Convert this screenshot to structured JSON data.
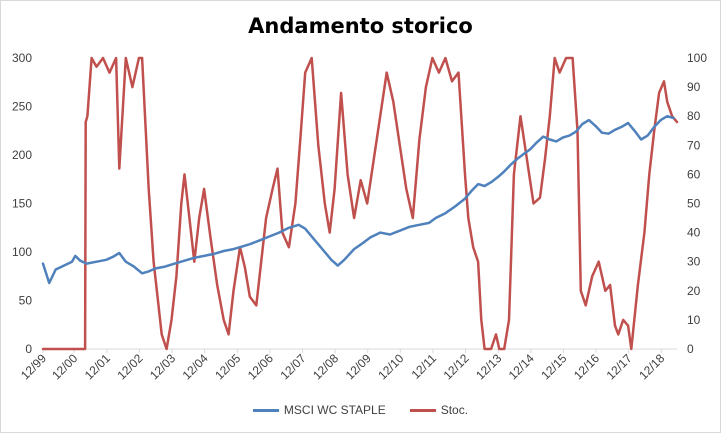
{
  "chart_data": {
    "type": "line",
    "title": "Andamento storico",
    "x_tick_labels": [
      "12/99",
      "12/00",
      "12/01",
      "12/02",
      "12/03",
      "12/04",
      "12/05",
      "12/06",
      "12/07",
      "12/08",
      "12/09",
      "12/10",
      "12/11",
      "12/12",
      "12/13",
      "12/14",
      "12/15",
      "12/16",
      "12/17",
      "12/18"
    ],
    "x_range": [
      1999.96,
      2019.4
    ],
    "y_left": {
      "range": [
        0,
        300
      ],
      "ticks": [
        "0",
        "50",
        "100",
        "150",
        "200",
        "250",
        "300"
      ]
    },
    "y_right": {
      "range": [
        0,
        100
      ],
      "ticks": [
        "0",
        "10",
        "20",
        "30",
        "40",
        "50",
        "60",
        "70",
        "80",
        "90",
        "100"
      ]
    },
    "grid": false,
    "legend_position": "bottom",
    "series": [
      {
        "name": "MSCI WC STAPLE",
        "axis": "left",
        "color": "#4f81bd",
        "points": [
          [
            1999.96,
            88
          ],
          [
            2000.15,
            68
          ],
          [
            2000.35,
            82
          ],
          [
            2000.6,
            86
          ],
          [
            2000.85,
            90
          ],
          [
            2000.95,
            96
          ],
          [
            2001.1,
            91
          ],
          [
            2001.3,
            88
          ],
          [
            2001.6,
            90
          ],
          [
            2001.9,
            92
          ],
          [
            2002.1,
            95
          ],
          [
            2002.3,
            99
          ],
          [
            2002.5,
            90
          ],
          [
            2002.75,
            85
          ],
          [
            2003.0,
            78
          ],
          [
            2003.2,
            80
          ],
          [
            2003.4,
            83
          ],
          [
            2003.7,
            85
          ],
          [
            2004.0,
            88
          ],
          [
            2004.3,
            91
          ],
          [
            2004.6,
            94
          ],
          [
            2004.9,
            96
          ],
          [
            2005.2,
            98
          ],
          [
            2005.5,
            101
          ],
          [
            2005.8,
            103
          ],
          [
            2006.0,
            105
          ],
          [
            2006.3,
            108
          ],
          [
            2006.6,
            112
          ],
          [
            2006.9,
            116
          ],
          [
            2007.2,
            120
          ],
          [
            2007.5,
            125
          ],
          [
            2007.8,
            128
          ],
          [
            2008.0,
            124
          ],
          [
            2008.3,
            112
          ],
          [
            2008.6,
            100
          ],
          [
            2008.8,
            92
          ],
          [
            2009.0,
            86
          ],
          [
            2009.2,
            92
          ],
          [
            2009.5,
            103
          ],
          [
            2009.8,
            110
          ],
          [
            2010.0,
            115
          ],
          [
            2010.3,
            120
          ],
          [
            2010.6,
            118
          ],
          [
            2010.9,
            122
          ],
          [
            2011.2,
            126
          ],
          [
            2011.5,
            128
          ],
          [
            2011.8,
            130
          ],
          [
            2012.0,
            135
          ],
          [
            2012.3,
            140
          ],
          [
            2012.6,
            147
          ],
          [
            2012.9,
            155
          ],
          [
            2013.1,
            163
          ],
          [
            2013.3,
            170
          ],
          [
            2013.5,
            168
          ],
          [
            2013.7,
            172
          ],
          [
            2013.9,
            177
          ],
          [
            2014.1,
            183
          ],
          [
            2014.3,
            190
          ],
          [
            2014.5,
            196
          ],
          [
            2014.7,
            201
          ],
          [
            2014.9,
            206
          ],
          [
            2015.1,
            213
          ],
          [
            2015.3,
            219
          ],
          [
            2015.5,
            216
          ],
          [
            2015.7,
            214
          ],
          [
            2015.9,
            218
          ],
          [
            2016.1,
            220
          ],
          [
            2016.3,
            224
          ],
          [
            2016.5,
            232
          ],
          [
            2016.7,
            236
          ],
          [
            2016.9,
            230
          ],
          [
            2017.1,
            223
          ],
          [
            2017.3,
            222
          ],
          [
            2017.5,
            226
          ],
          [
            2017.7,
            229
          ],
          [
            2017.9,
            233
          ],
          [
            2018.1,
            225
          ],
          [
            2018.3,
            216
          ],
          [
            2018.5,
            220
          ],
          [
            2018.7,
            229
          ],
          [
            2018.9,
            236
          ],
          [
            2019.1,
            240
          ],
          [
            2019.3,
            238
          ]
        ]
      },
      {
        "name": "Stoc.",
        "axis": "right",
        "color": "#c0504d",
        "points": [
          [
            1999.96,
            0
          ],
          [
            2001.25,
            0
          ],
          [
            2001.27,
            78
          ],
          [
            2001.32,
            80
          ],
          [
            2001.45,
            100
          ],
          [
            2001.6,
            97
          ],
          [
            2001.8,
            100
          ],
          [
            2002.0,
            95
          ],
          [
            2002.2,
            100
          ],
          [
            2002.3,
            62
          ],
          [
            2002.5,
            100
          ],
          [
            2002.7,
            90
          ],
          [
            2002.9,
            100
          ],
          [
            2003.0,
            100
          ],
          [
            2003.2,
            55
          ],
          [
            2003.35,
            30
          ],
          [
            2003.5,
            15
          ],
          [
            2003.6,
            5
          ],
          [
            2003.75,
            0
          ],
          [
            2003.9,
            10
          ],
          [
            2004.05,
            25
          ],
          [
            2004.2,
            50
          ],
          [
            2004.3,
            60
          ],
          [
            2004.45,
            45
          ],
          [
            2004.6,
            30
          ],
          [
            2004.75,
            45
          ],
          [
            2004.9,
            55
          ],
          [
            2005.1,
            38
          ],
          [
            2005.3,
            22
          ],
          [
            2005.5,
            10
          ],
          [
            2005.65,
            5
          ],
          [
            2005.8,
            20
          ],
          [
            2006.0,
            35
          ],
          [
            2006.15,
            28
          ],
          [
            2006.3,
            18
          ],
          [
            2006.5,
            15
          ],
          [
            2006.65,
            30
          ],
          [
            2006.8,
            45
          ],
          [
            2007.0,
            55
          ],
          [
            2007.15,
            62
          ],
          [
            2007.3,
            40
          ],
          [
            2007.5,
            35
          ],
          [
            2007.7,
            50
          ],
          [
            2007.85,
            72
          ],
          [
            2008.0,
            95
          ],
          [
            2008.2,
            100
          ],
          [
            2008.4,
            70
          ],
          [
            2008.6,
            50
          ],
          [
            2008.75,
            40
          ],
          [
            2008.9,
            55
          ],
          [
            2009.1,
            88
          ],
          [
            2009.3,
            60
          ],
          [
            2009.5,
            45
          ],
          [
            2009.7,
            58
          ],
          [
            2009.9,
            50
          ],
          [
            2010.1,
            65
          ],
          [
            2010.3,
            80
          ],
          [
            2010.5,
            95
          ],
          [
            2010.7,
            85
          ],
          [
            2010.9,
            70
          ],
          [
            2011.1,
            55
          ],
          [
            2011.3,
            45
          ],
          [
            2011.5,
            72
          ],
          [
            2011.7,
            90
          ],
          [
            2011.9,
            100
          ],
          [
            2012.1,
            95
          ],
          [
            2012.3,
            100
          ],
          [
            2012.5,
            92
          ],
          [
            2012.7,
            95
          ],
          [
            2012.9,
            60
          ],
          [
            2013.0,
            45
          ],
          [
            2013.15,
            35
          ],
          [
            2013.3,
            30
          ],
          [
            2013.4,
            10
          ],
          [
            2013.5,
            0
          ],
          [
            2013.7,
            0
          ],
          [
            2013.85,
            5
          ],
          [
            2013.95,
            0
          ],
          [
            2014.1,
            0
          ],
          [
            2014.25,
            10
          ],
          [
            2014.4,
            60
          ],
          [
            2014.6,
            80
          ],
          [
            2014.8,
            65
          ],
          [
            2015.0,
            50
          ],
          [
            2015.2,
            52
          ],
          [
            2015.35,
            65
          ],
          [
            2015.5,
            80
          ],
          [
            2015.65,
            100
          ],
          [
            2015.8,
            95
          ],
          [
            2016.0,
            100
          ],
          [
            2016.2,
            100
          ],
          [
            2016.35,
            75
          ],
          [
            2016.45,
            20
          ],
          [
            2016.6,
            15
          ],
          [
            2016.8,
            25
          ],
          [
            2017.0,
            30
          ],
          [
            2017.2,
            20
          ],
          [
            2017.35,
            22
          ],
          [
            2017.5,
            8
          ],
          [
            2017.6,
            5
          ],
          [
            2017.75,
            10
          ],
          [
            2017.9,
            8
          ],
          [
            2018.0,
            0
          ],
          [
            2018.2,
            22
          ],
          [
            2018.4,
            40
          ],
          [
            2018.55,
            60
          ],
          [
            2018.7,
            75
          ],
          [
            2018.85,
            88
          ],
          [
            2019.0,
            92
          ],
          [
            2019.1,
            85
          ],
          [
            2019.25,
            80
          ],
          [
            2019.4,
            78
          ]
        ]
      }
    ]
  }
}
